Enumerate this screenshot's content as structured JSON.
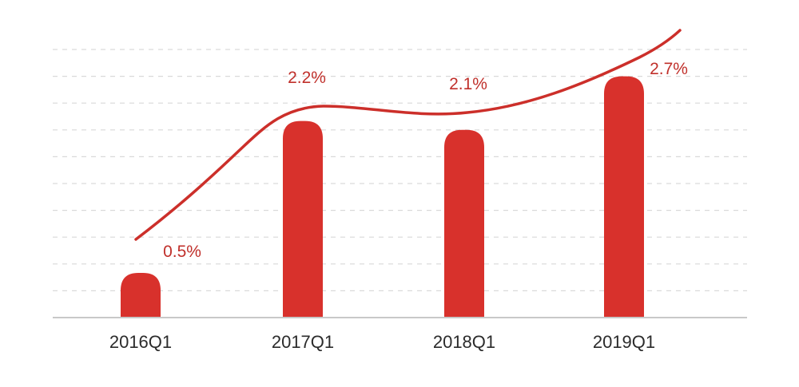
{
  "chart_data": {
    "type": "bar",
    "title": "",
    "xlabel": "",
    "ylabel": "",
    "categories": [
      "2016Q1",
      "2017Q1",
      "2018Q1",
      "2019Q1"
    ],
    "values": [
      0.5,
      2.2,
      2.1,
      2.7
    ],
    "data_labels": [
      "0.5%",
      "2.2%",
      "2.1%",
      "2.7%"
    ],
    "unit": "%",
    "ylim": [
      0,
      3.0
    ],
    "grid": true,
    "trend_line": true,
    "colors": {
      "bar": "#d8312c",
      "trend": "#cc2f2a",
      "label": "#c0302b",
      "tick": "#2b2b2b",
      "grid": "#d9d9d9"
    }
  }
}
